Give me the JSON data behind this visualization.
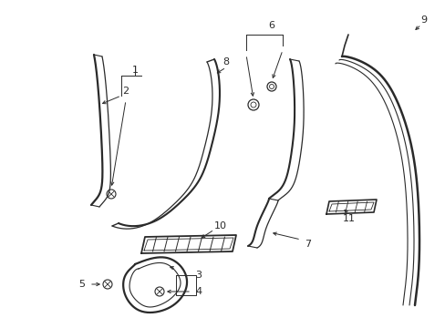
{
  "bg_color": "#ffffff",
  "line_color": "#2a2a2a",
  "figsize": [
    4.89,
    3.6
  ],
  "dpi": 100
}
